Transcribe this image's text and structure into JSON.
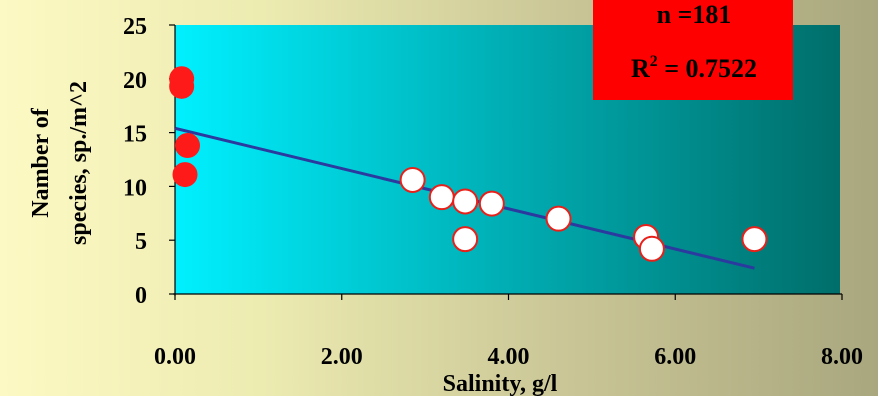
{
  "chart_data": {
    "type": "scatter",
    "xlabel": "Salinity, g/l",
    "ylabel_line1": "Namber of",
    "ylabel_line2": "species, sp./m^2",
    "xlim": [
      0,
      8
    ],
    "ylim": [
      0,
      25
    ],
    "x_ticks": [
      0,
      2,
      4,
      6,
      8
    ],
    "x_tick_labels": [
      "0.00",
      "2.00",
      "4.00",
      "6.00",
      "8.00"
    ],
    "y_ticks": [
      0,
      5,
      10,
      15,
      20,
      25
    ],
    "y_tick_labels": [
      "0",
      "5",
      "10",
      "15",
      "20",
      "25"
    ],
    "series": [
      {
        "marker": "red-filled-circle",
        "color": "#ff1a1a",
        "points": [
          [
            0.08,
            20.0
          ],
          [
            0.08,
            19.3
          ],
          [
            0.15,
            13.8
          ],
          [
            0.12,
            11.1
          ]
        ]
      },
      {
        "marker": "white-circle-red-outline",
        "color": "#ffffff",
        "edge": "#e8201a",
        "points": [
          [
            2.85,
            10.6
          ],
          [
            3.2,
            9.0
          ],
          [
            3.48,
            8.6
          ],
          [
            3.8,
            8.4
          ],
          [
            4.6,
            7.0
          ],
          [
            3.48,
            5.1
          ],
          [
            5.65,
            5.3
          ],
          [
            5.72,
            4.2
          ],
          [
            6.95,
            5.1
          ]
        ]
      }
    ],
    "trendline": {
      "color": "#2b3a9e",
      "from": [
        0.0,
        15.4
      ],
      "to": [
        6.95,
        2.4
      ]
    },
    "annotation": {
      "n": "n =181",
      "r2": "R",
      "r2_sup": "2",
      "r2_value": " = 0.7522",
      "background": "#ff0000"
    },
    "plot_gradient": [
      "#00f0ff",
      "#006e6a"
    ],
    "grid": false
  }
}
